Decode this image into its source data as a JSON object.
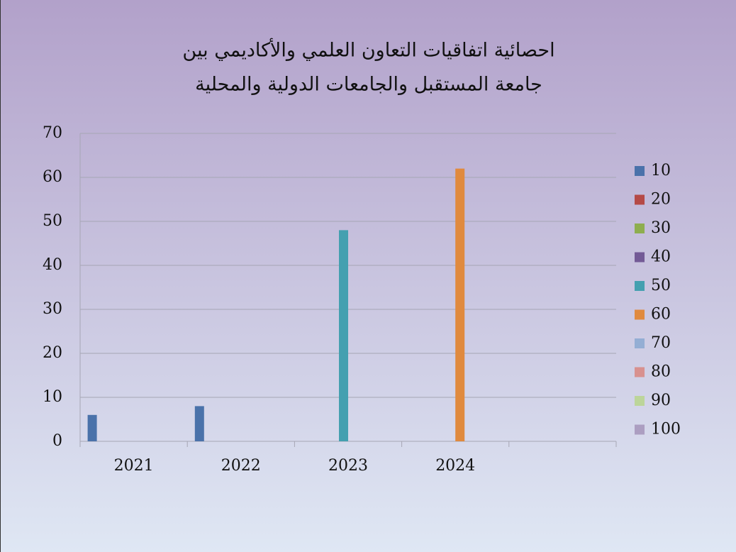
{
  "chart_data": {
    "type": "bar",
    "title": "احصائية اتفاقيات التعاون العلمي والأكاديمي بين",
    "subtitle": "جامعة المستقبل والجامعات الدولية والمحلية",
    "categories": [
      "2021",
      "2022",
      "2023",
      "2024",
      null
    ],
    "series": [
      {
        "name": "10",
        "color": "#4a72aa",
        "values": [
          6,
          8,
          null,
          null,
          null
        ]
      },
      {
        "name": "20",
        "color": "#b54a47",
        "values": [
          null,
          null,
          null,
          null,
          null
        ]
      },
      {
        "name": "30",
        "color": "#8eae4f",
        "values": [
          null,
          null,
          null,
          null,
          null
        ]
      },
      {
        "name": "40",
        "color": "#735a96",
        "values": [
          null,
          null,
          null,
          null,
          null
        ]
      },
      {
        "name": "50",
        "color": "#44a0b0",
        "values": [
          null,
          null,
          48,
          null,
          null
        ]
      },
      {
        "name": "60",
        "color": "#e08a3e",
        "values": [
          null,
          null,
          null,
          62,
          null
        ]
      },
      {
        "name": "70",
        "color": "#94aed4",
        "values": [
          null,
          null,
          null,
          null,
          null
        ]
      },
      {
        "name": "80",
        "color": "#d8918f",
        "values": [
          null,
          null,
          null,
          null,
          null
        ]
      },
      {
        "name": "90",
        "color": "#bcd59a",
        "values": [
          null,
          null,
          null,
          null,
          null
        ]
      },
      {
        "name": "100",
        "color": "#ac9ec1",
        "values": [
          null,
          null,
          null,
          null,
          null
        ]
      }
    ],
    "ylim": [
      0,
      70
    ],
    "yticks": [
      0,
      10,
      20,
      30,
      40,
      50,
      60,
      70
    ],
    "grid": true,
    "legend": "right"
  }
}
